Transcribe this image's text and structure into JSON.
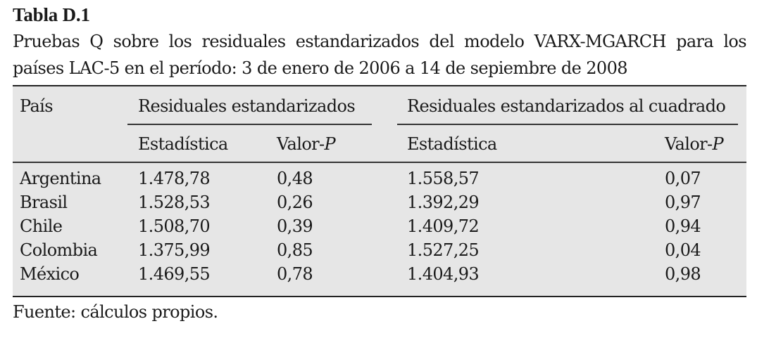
{
  "title": "Tabla D.1",
  "caption": "Pruebas Q sobre los residuales estandarizados del modelo VARX-MGARCH para los países LAC-5 en el período: 3 de enero de 2006 a 14 de sepiembre de 2008",
  "table": {
    "country_header": "País",
    "group1_header": "Residuales estandarizados",
    "group2_header": "Residuales estandarizados al cuadrado",
    "sub_stat": "Estadística",
    "sub_valp_prefix": "Valor-",
    "sub_valp_letter": "P",
    "rows": [
      {
        "country": "Argentina",
        "stat1": "1.478,78",
        "p1": "0,48",
        "stat2": "1.558,57",
        "p2": "0,07"
      },
      {
        "country": "Brasil",
        "stat1": "1.528,53",
        "p1": "0,26",
        "stat2": "1.392,29",
        "p2": "0,97"
      },
      {
        "country": "Chile",
        "stat1": "1.508,70",
        "p1": "0,39",
        "stat2": "1.409,72",
        "p2": "0,94"
      },
      {
        "country": "Colombia",
        "stat1": "1.375,99",
        "p1": "0,85",
        "stat2": "1.527,25",
        "p2": "0,04"
      },
      {
        "country": "México",
        "stat1": "1.469,55",
        "p1": "0,78",
        "stat2": "1.404,93",
        "p2": "0,98"
      }
    ]
  },
  "source": "Fuente: cálculos propios."
}
